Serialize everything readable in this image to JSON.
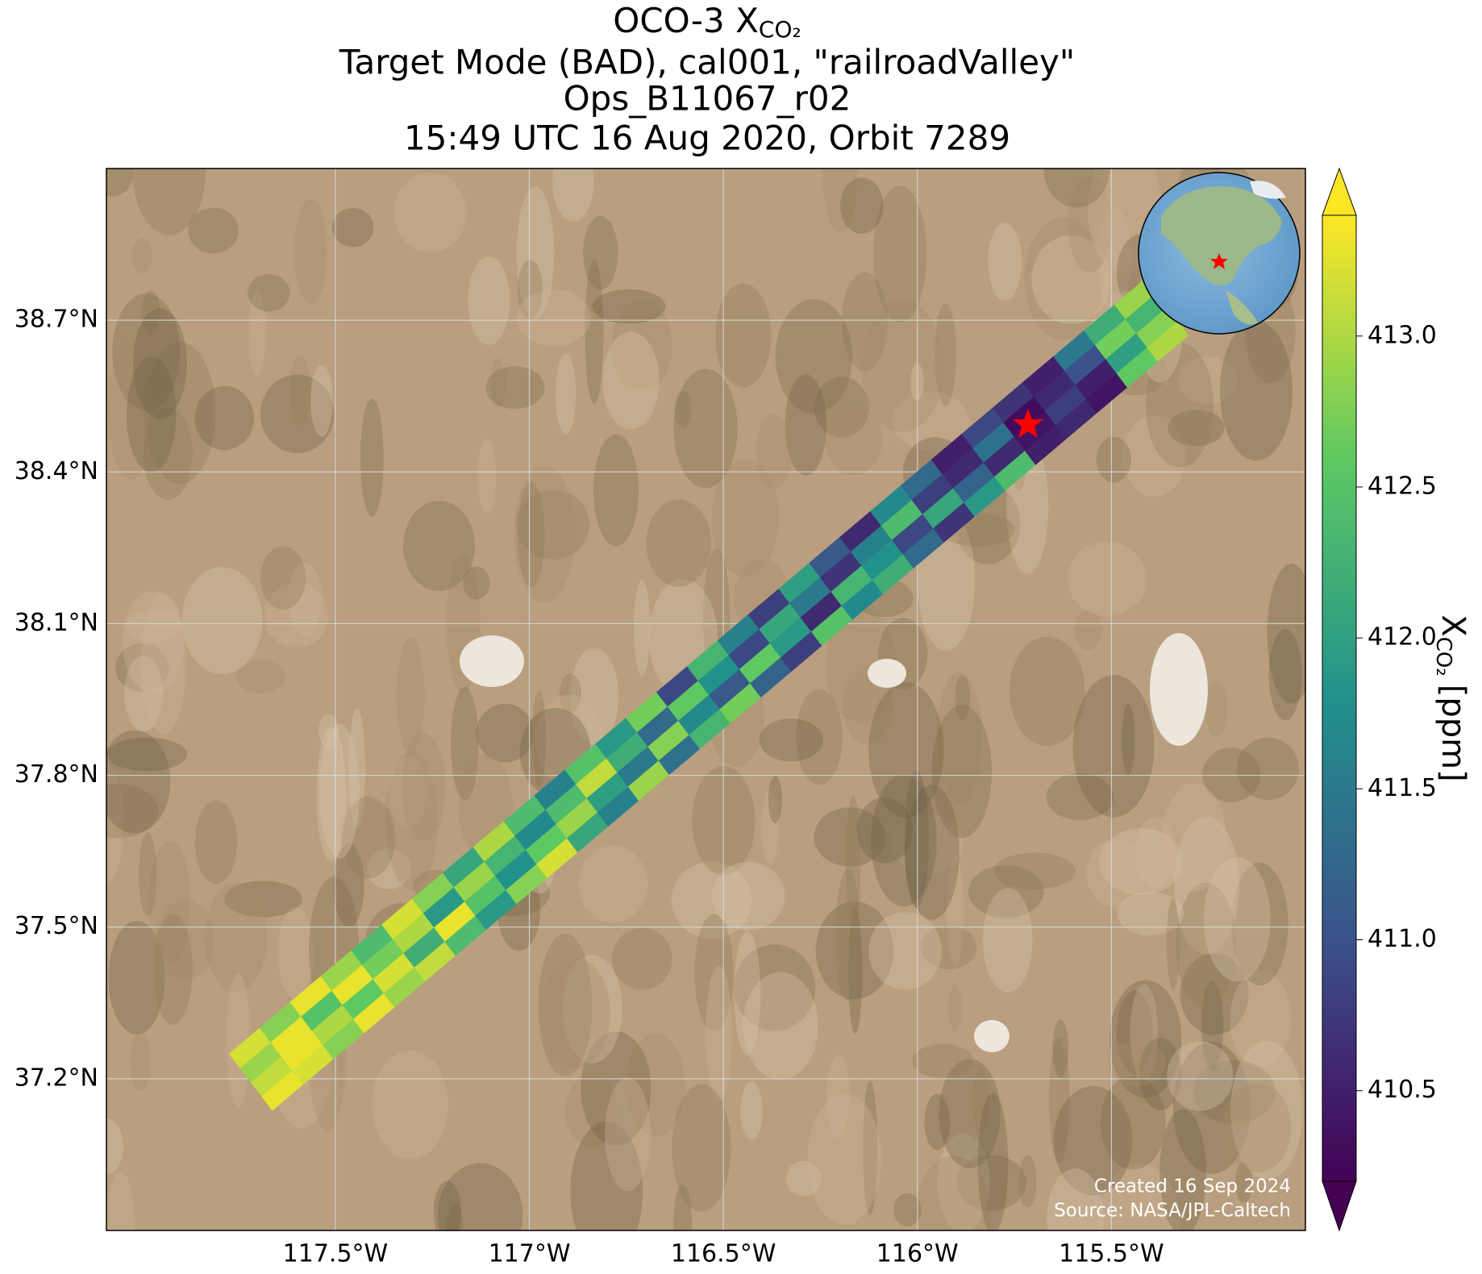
{
  "chart_data": {
    "type": "swath-map",
    "title_lines": [
      "OCO-3 X",
      "Target Mode (BAD), cal001, \"railroadValley\"",
      "Ops_B11067_r02",
      "15:49 UTC 16 Aug 2020, Orbit 7289"
    ],
    "title_subscript": "CO₂",
    "xlim": [
      -118.09,
      -115.0
    ],
    "ylim": [
      36.9,
      39.0
    ],
    "xticks": [
      {
        "value": -117.5,
        "label": "117.5°W"
      },
      {
        "value": -117,
        "label": "117°W"
      },
      {
        "value": -116.5,
        "label": "116.5°W"
      },
      {
        "value": -116,
        "label": "116°W"
      },
      {
        "value": -115.5,
        "label": "115.5°W"
      }
    ],
    "yticks": [
      {
        "value": 37.2,
        "label": "37.2°N"
      },
      {
        "value": 37.5,
        "label": "37.5°N"
      },
      {
        "value": 37.8,
        "label": "37.8°N"
      },
      {
        "value": 38.1,
        "label": "38.1°N"
      },
      {
        "value": 38.4,
        "label": "38.4°N"
      },
      {
        "value": 38.7,
        "label": "38.7°N"
      }
    ],
    "grid": true,
    "colormap": "viridis",
    "clim": [
      410.2,
      413.4
    ],
    "cticks": [
      410.5,
      {
        "value": 411,
        "label": "411.0"
      },
      411.5,
      {
        "value": 412,
        "label": "412.0"
      },
      412.5,
      {
        "value": 413,
        "label": "413.0"
      }
    ],
    "colorbar_label": {
      "symbol": "X",
      "subscript": "CO₂",
      "unit": "[ppm]"
    },
    "swath_values": [
      [
        413.3,
        413.2,
        412.8,
        413.3,
        412.9,
        413.1,
        412.4,
        411.9,
        412.8,
        413.2,
        412.1,
        411.6,
        412.9,
        411.4,
        412.3,
        412.7,
        411.2,
        410.8,
        412.5,
        411.7,
        412.2,
        411.3,
        410.7,
        411.9,
        412.4,
        410.5,
        410.6,
        410.4,
        412.6,
        413.0
      ],
      [
        413.1,
        413.3,
        413.0,
        412.6,
        413.2,
        412.2,
        413.3,
        412.5,
        411.8,
        412.6,
        412.9,
        412.0,
        411.5,
        412.8,
        411.7,
        411.1,
        412.6,
        411.9,
        410.6,
        412.3,
        411.8,
        410.9,
        412.1,
        411.2,
        410.6,
        410.4,
        410.8,
        410.5,
        412.0,
        412.8
      ],
      [
        412.9,
        413.3,
        412.5,
        413.3,
        412.7,
        413.0,
        411.9,
        412.9,
        412.3,
        411.7,
        412.4,
        413.1,
        412.2,
        411.3,
        412.6,
        411.8,
        410.9,
        412.1,
        411.5,
        410.7,
        411.6,
        412.4,
        410.8,
        410.6,
        411.4,
        410.3,
        410.6,
        411.0,
        412.7,
        412.3
      ],
      [
        413.2,
        412.8,
        413.3,
        412.9,
        412.4,
        413.2,
        412.8,
        412.1,
        413.0,
        412.4,
        411.6,
        412.5,
        411.9,
        412.7,
        410.9,
        412.3,
        411.6,
        410.8,
        412.0,
        411.1,
        410.6,
        411.7,
        411.3,
        410.5,
        410.9,
        410.7,
        410.5,
        411.5,
        412.2,
        412.9
      ]
    ],
    "footer": [
      "Created 16 Sep 2024",
      "Source: NASA/JPL-Caltech"
    ]
  }
}
